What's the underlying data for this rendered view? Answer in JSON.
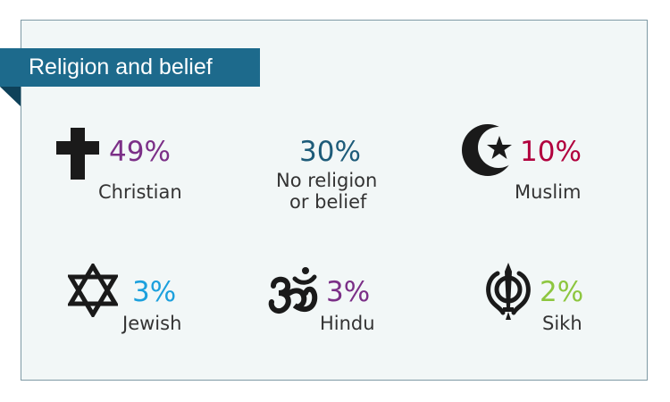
{
  "title": "Religion and belief",
  "items": [
    {
      "id": "christian",
      "percent": "49%",
      "label": "Christian",
      "color": "#7b2f87",
      "icon": "cross-icon"
    },
    {
      "id": "none",
      "percent": "30%",
      "label_line1": "No religion",
      "label_line2": "or belief",
      "color": "#1d5b79"
    },
    {
      "id": "muslim",
      "percent": "10%",
      "label": "Muslim",
      "color": "#b1003d",
      "icon": "crescent-star-icon"
    },
    {
      "id": "jewish",
      "percent": "3%",
      "label": "Jewish",
      "color": "#1ca0dd",
      "icon": "star-of-david-icon"
    },
    {
      "id": "hindu",
      "percent": "3%",
      "label": "Hindu",
      "color": "#7b2f87",
      "icon": "om-icon"
    },
    {
      "id": "sikh",
      "percent": "2%",
      "label": "Sikh",
      "color": "#8dc63f",
      "icon": "khanda-icon"
    }
  ]
}
